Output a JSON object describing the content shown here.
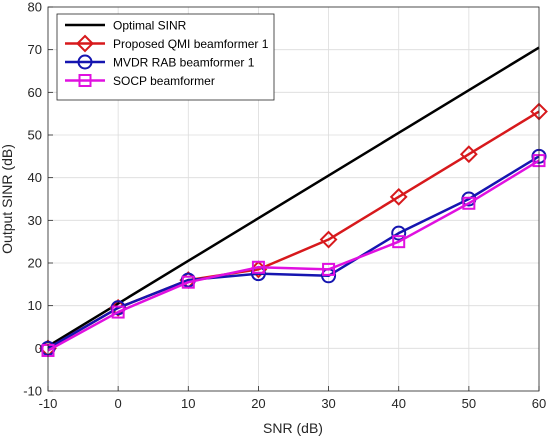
{
  "chart_data": {
    "type": "line",
    "xlabel": "SNR (dB)",
    "ylabel": "Output SINR (dB)",
    "xlim": [
      -10,
      60
    ],
    "ylim": [
      -10,
      80
    ],
    "xticks": [
      -10,
      0,
      10,
      20,
      30,
      40,
      50,
      60
    ],
    "yticks": [
      -10,
      0,
      10,
      20,
      30,
      40,
      50,
      60,
      70,
      80
    ],
    "grid": true,
    "legend_position": "top-left",
    "x": [
      -10,
      0,
      10,
      20,
      30,
      40,
      50,
      60
    ],
    "series": [
      {
        "name": "Optimal SINR",
        "color": "#000000",
        "marker": "none",
        "values": [
          0.5,
          10.5,
          20.5,
          30.5,
          40.5,
          50.5,
          60.5,
          70.5
        ]
      },
      {
        "name": "Proposed QMI beamformer 1",
        "color": "#d7191c",
        "marker": "diamond",
        "values": [
          0,
          9.5,
          16,
          18.5,
          25.5,
          35.5,
          45.5,
          55.5
        ]
      },
      {
        "name": "MVDR RAB beamformer 1",
        "color": "#1515b0",
        "marker": "circle",
        "values": [
          0,
          9.5,
          16,
          17.5,
          17,
          27,
          35,
          45
        ]
      },
      {
        "name": "SOCP beamformer",
        "color": "#e010e0",
        "marker": "square",
        "values": [
          -0.5,
          8.5,
          15.5,
          19,
          18.5,
          25,
          34,
          44
        ]
      }
    ]
  }
}
